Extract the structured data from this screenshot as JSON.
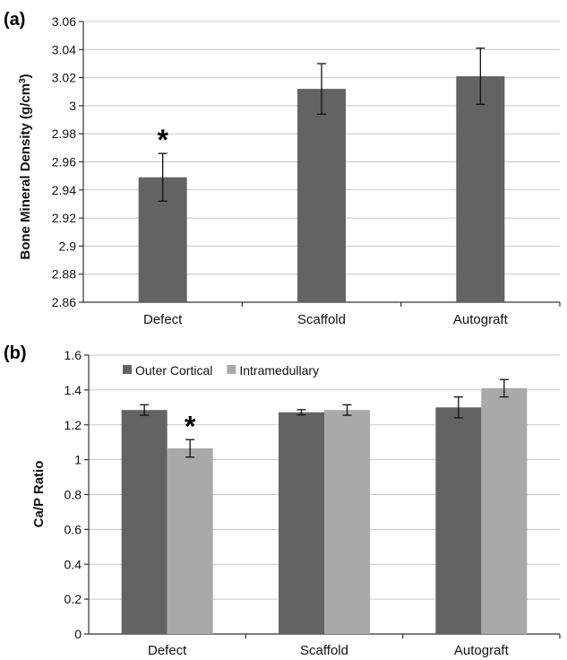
{
  "chart_data": [
    {
      "panel_label": "(a)",
      "type": "bar",
      "categories": [
        "Defect",
        "Scaffold",
        "Autograft"
      ],
      "ylabel": "Bone Mineral Density",
      "ylabel_units_pre": "(g/cm",
      "ylabel_units_sup": "3",
      "ylabel_units_post": ")",
      "ylim": [
        2.86,
        3.06
      ],
      "yticks": [
        2.86,
        2.88,
        2.9,
        2.92,
        2.94,
        2.96,
        2.98,
        3,
        3.02,
        3.04,
        3.06
      ],
      "ytick_labels": [
        "2.86",
        "2.88",
        "2.9",
        "2.92",
        "2.94",
        "2.96",
        "2.98",
        "3",
        "3.02",
        "3.04",
        "3.06"
      ],
      "grid": true,
      "series": [
        {
          "values": [
            2.949,
            3.012,
            3.021
          ],
          "errors": [
            0.017,
            0.018,
            0.02
          ],
          "color": "#636363"
        }
      ],
      "annotations": [
        {
          "text": "*",
          "category": "Defect",
          "series": 0
        }
      ]
    },
    {
      "panel_label": "(b)",
      "type": "bar",
      "categories": [
        "Defect",
        "Scaffold",
        "Autograft"
      ],
      "ylabel": "Ca/P Ratio",
      "ylim": [
        0,
        1.6
      ],
      "yticks": [
        0,
        0.2,
        0.4,
        0.6,
        0.8,
        1,
        1.2,
        1.4,
        1.6
      ],
      "ytick_labels": [
        "0",
        "0.2",
        "0.4",
        "0.6",
        "0.8",
        "1",
        "1.2",
        "1.4",
        "1.6"
      ],
      "grid": true,
      "legend": "top-left",
      "series": [
        {
          "name": "Outer Cortical",
          "values": [
            1.285,
            1.272,
            1.3
          ],
          "errors": [
            0.03,
            0.015,
            0.06
          ],
          "color": "#636363"
        },
        {
          "name": "Intramedullary",
          "values": [
            1.065,
            1.285,
            1.41
          ],
          "errors": [
            0.05,
            0.03,
            0.05
          ],
          "color": "#a9a9a9"
        }
      ],
      "annotations": [
        {
          "text": "*",
          "category": "Defect",
          "series": 1
        }
      ]
    }
  ]
}
